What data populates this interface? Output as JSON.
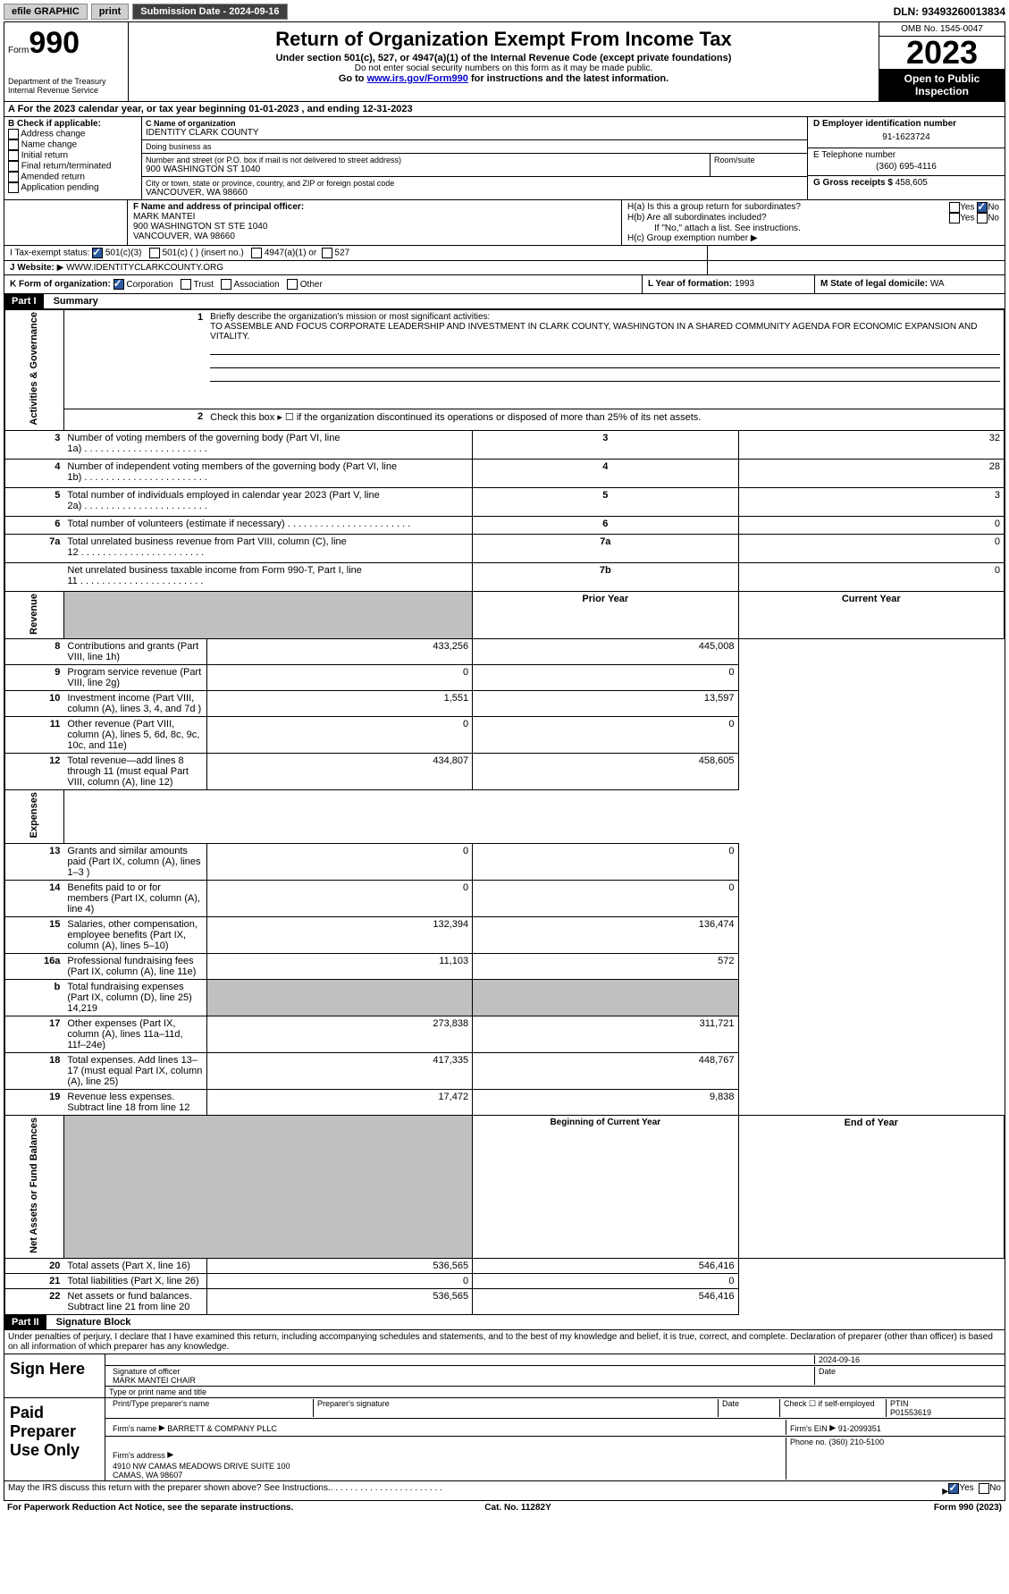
{
  "topbar": {
    "efile": "efile GRAPHIC",
    "print": "print",
    "submission_label": "Submission Date - 2024-09-16",
    "dln_label": "DLN: 93493260013834"
  },
  "header": {
    "form_word": "Form",
    "form_num": "990",
    "title": "Return of Organization Exempt From Income Tax",
    "sub1": "Under section 501(c), 527, or 4947(a)(1) of the Internal Revenue Code (except private foundations)",
    "sub2": "Do not enter social security numbers on this form as it may be made public.",
    "sub3_pre": "Go to ",
    "sub3_link": "www.irs.gov/Form990",
    "sub3_post": " for instructions and the latest information.",
    "dept1": "Department of the Treasury",
    "dept2": "Internal Revenue Service",
    "omb": "OMB No. 1545-0047",
    "year": "2023",
    "open1": "Open to Public",
    "open2": "Inspection"
  },
  "lineA": {
    "pre": "A For the 2023 calendar year, or tax year beginning ",
    "begin": "01-01-2023",
    "mid": " , and ending ",
    "end": "12-31-2023"
  },
  "boxB": {
    "label": "B Check if applicable:",
    "items": [
      "Address change",
      "Name change",
      "Initial return",
      "Final return/terminated",
      "Amended return",
      "Application pending"
    ]
  },
  "boxC": {
    "name_label": "C Name of organization",
    "name": "IDENTITY CLARK COUNTY",
    "dba_label": "Doing business as",
    "dba": "",
    "street_label": "Number and street (or P.O. box if mail is not delivered to street address)",
    "street": "900 WASHINGTON ST 1040",
    "room_label": "Room/suite",
    "room": "",
    "city_label": "City or town, state or province, country, and ZIP or foreign postal code",
    "city": "VANCOUVER, WA  98660"
  },
  "boxD": {
    "label": "D Employer identification number",
    "val": "91-1623724"
  },
  "boxE": {
    "label": "E Telephone number",
    "val": "(360) 695-4116"
  },
  "boxG": {
    "label": "G Gross receipts $",
    "val": "458,605"
  },
  "boxF": {
    "label": "F  Name and address of principal officer:",
    "name": "MARK MANTEI",
    "addr1": "900 WASHINGTON ST STE 1040",
    "addr2": "VANCOUVER, WA  98660"
  },
  "boxH": {
    "a_label": "H(a)  Is this a group return for subordinates?",
    "a_no_checked": true,
    "b_label": "H(b)  Are all subordinates included?",
    "b_note": "If \"No,\" attach a list. See instructions.",
    "c_label": "H(c)  Group exemption number ",
    "c_arrow": "▶"
  },
  "boxI": {
    "label": "I    Tax-exempt status:",
    "opt1": "501(c)(3)",
    "opt1_checked": true,
    "opt2": "501(c) (  ) (insert no.)",
    "opt3": "4947(a)(1) or",
    "opt4": "527"
  },
  "boxJ": {
    "label": "J   Website: ",
    "arrow": "▶",
    "val": "WWW.IDENTITYCLARKCOUNTY.ORG"
  },
  "boxK": {
    "label": "K Form of organization:",
    "opts": [
      "Corporation",
      "Trust",
      "Association",
      "Other"
    ],
    "checked": 0
  },
  "boxL": {
    "label": "L Year of formation: ",
    "val": "1993"
  },
  "boxM": {
    "label": "M State of legal domicile: ",
    "val": "WA"
  },
  "part1": {
    "tag": "Part I",
    "title": "Summary"
  },
  "summary": {
    "sections": {
      "activities": "Activities & Governance",
      "revenue": "Revenue",
      "expenses": "Expenses",
      "net": "Net Assets or Fund Balances"
    },
    "line1_label": "Briefly describe the organization's mission or most significant activities:",
    "line1_text": "TO ASSEMBLE AND FOCUS CORPORATE LEADERSHIP AND INVESTMENT IN CLARK COUNTY, WASHINGTON IN A SHARED COMMUNITY AGENDA FOR ECONOMIC EXPANSION AND VITALITY.",
    "line2": "Check this box ▸ ☐ if the organization discontinued its operations or disposed of more than 25% of its net assets.",
    "rows_a": [
      {
        "n": "3",
        "t": "Number of voting members of the governing body (Part VI, line 1a)",
        "k": "3",
        "v": "32"
      },
      {
        "n": "4",
        "t": "Number of independent voting members of the governing body (Part VI, line 1b)",
        "k": "4",
        "v": "28"
      },
      {
        "n": "5",
        "t": "Total number of individuals employed in calendar year 2023 (Part V, line 2a)",
        "k": "5",
        "v": "3"
      },
      {
        "n": "6",
        "t": "Total number of volunteers (estimate if necessary)",
        "k": "6",
        "v": "0"
      },
      {
        "n": "7a",
        "t": "Total unrelated business revenue from Part VIII, column (C), line 12",
        "k": "7a",
        "v": "0"
      },
      {
        "n": "",
        "t": "Net unrelated business taxable income from Form 990-T, Part I, line 11",
        "k": "7b",
        "v": "0"
      }
    ],
    "hdr_prior": "Prior Year",
    "hdr_curr": "Current Year",
    "rows_r": [
      {
        "n": "8",
        "t": "Contributions and grants (Part VIII, line 1h)",
        "p": "433,256",
        "c": "445,008"
      },
      {
        "n": "9",
        "t": "Program service revenue (Part VIII, line 2g)",
        "p": "0",
        "c": "0"
      },
      {
        "n": "10",
        "t": "Investment income (Part VIII, column (A), lines 3, 4, and 7d )",
        "p": "1,551",
        "c": "13,597"
      },
      {
        "n": "11",
        "t": "Other revenue (Part VIII, column (A), lines 5, 6d, 8c, 9c, 10c, and 11e)",
        "p": "0",
        "c": "0"
      },
      {
        "n": "12",
        "t": "Total revenue—add lines 8 through 11 (must equal Part VIII, column (A), line 12)",
        "p": "434,807",
        "c": "458,605"
      }
    ],
    "rows_e": [
      {
        "n": "13",
        "t": "Grants and similar amounts paid (Part IX, column (A), lines 1–3 )",
        "p": "0",
        "c": "0"
      },
      {
        "n": "14",
        "t": "Benefits paid to or for members (Part IX, column (A), line 4)",
        "p": "0",
        "c": "0"
      },
      {
        "n": "15",
        "t": "Salaries, other compensation, employee benefits (Part IX, column (A), lines 5–10)",
        "p": "132,394",
        "c": "136,474"
      },
      {
        "n": "16a",
        "t": "Professional fundraising fees (Part IX, column (A), line 11e)",
        "p": "11,103",
        "c": "572"
      },
      {
        "n": "b",
        "t": "Total fundraising expenses (Part IX, column (D), line 25) 14,219",
        "p": "",
        "c": "",
        "grey": true
      },
      {
        "n": "17",
        "t": "Other expenses (Part IX, column (A), lines 11a–11d, 11f–24e)",
        "p": "273,838",
        "c": "311,721"
      },
      {
        "n": "18",
        "t": "Total expenses. Add lines 13–17 (must equal Part IX, column (A), line 25)",
        "p": "417,335",
        "c": "448,767"
      },
      {
        "n": "19",
        "t": "Revenue less expenses. Subtract line 18 from line 12",
        "p": "17,472",
        "c": "9,838"
      }
    ],
    "hdr_begin": "Beginning of Current Year",
    "hdr_end": "End of Year",
    "rows_n": [
      {
        "n": "20",
        "t": "Total assets (Part X, line 16)",
        "p": "536,565",
        "c": "546,416"
      },
      {
        "n": "21",
        "t": "Total liabilities (Part X, line 26)",
        "p": "0",
        "c": "0"
      },
      {
        "n": "22",
        "t": "Net assets or fund balances. Subtract line 21 from line 20",
        "p": "536,565",
        "c": "546,416"
      }
    ]
  },
  "part2": {
    "tag": "Part II",
    "title": "Signature Block"
  },
  "sig": {
    "decl": "Under penalties of perjury, I declare that I have examined this return, including accompanying schedules and statements, and to the best of my knowledge and belief, it is true, correct, and complete. Declaration of preparer (other than officer) is based on all information of which preparer has any knowledge.",
    "sign_here": "Sign Here",
    "date": "2024-09-16",
    "sig_label": "Signature of officer",
    "officer": "MARK MANTEI  CHAIR",
    "name_label": "Type or print name and title",
    "date_label": "Date",
    "paid": "Paid Preparer Use Only",
    "prep_name_label": "Print/Type preparer's name",
    "prep_sig_label": "Preparer's signature",
    "self_emp": "Check ☐ if self-employed",
    "ptin_label": "PTIN",
    "ptin": "P01553619",
    "firm_name_label": "Firm's name   ",
    "firm_name": "BARRETT & COMPANY PLLC",
    "firm_ein_label": "Firm's EIN ",
    "firm_ein": "91-2099351",
    "firm_addr_label": "Firm's address ",
    "firm_addr": "4910 NW CAMAS MEADOWS DRIVE SUITE 100\nCAMAS, WA  98607",
    "phone_label": "Phone no. ",
    "phone": "(360) 210-5100",
    "discuss": "May the IRS discuss this return with the preparer shown above? See Instructions.",
    "discuss_yes_checked": true
  },
  "footer": {
    "l": "For Paperwork Reduction Act Notice, see the separate instructions.",
    "m": "Cat. No. 11282Y",
    "r": "Form 990 (2023)"
  },
  "colors": {
    "link": "#0000cc",
    "checkbox": "#2c5aa0"
  }
}
